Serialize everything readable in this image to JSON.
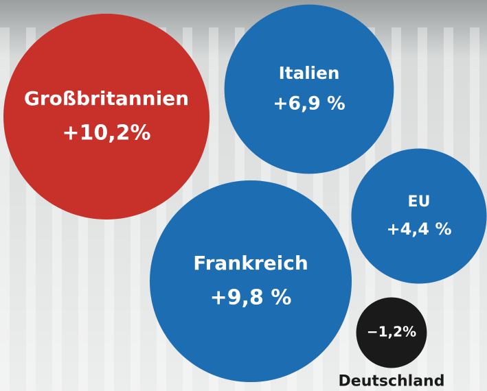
{
  "chart_data": {
    "type": "bubble",
    "categories": [
      "Großbritannien",
      "Italien",
      "EU",
      "Frankreich",
      "Deutschland"
    ],
    "values": [
      10.2,
      6.9,
      4.4,
      9.8,
      -1.2
    ],
    "value_labels": [
      "+10,2%",
      "+6,9 %",
      "+4,4 %",
      "+9,8 %",
      "−1,2%"
    ],
    "colors": [
      "#c8302a",
      "#1d6db3",
      "#1d6db3",
      "#1d6db3",
      "#1a1a1a"
    ]
  }
}
